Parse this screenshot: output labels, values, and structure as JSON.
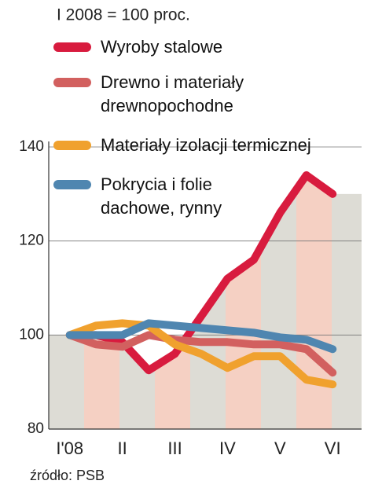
{
  "chart_data": {
    "type": "line",
    "title": "I 2008 = 100 proc.",
    "source": "źródło: PSB",
    "x": [
      1,
      1.5,
      2,
      2.5,
      3,
      3.5,
      4,
      4.5,
      5,
      5.5,
      6
    ],
    "xlim": [
      0.6,
      6.55
    ],
    "xticks": [
      {
        "value": 1,
        "label": "I'08"
      },
      {
        "value": 2,
        "label": "II"
      },
      {
        "value": 3,
        "label": "III"
      },
      {
        "value": 4,
        "label": "IV"
      },
      {
        "value": 5,
        "label": "V"
      },
      {
        "value": 6,
        "label": "VI"
      }
    ],
    "ylim": [
      80,
      140
    ],
    "yticks": [
      80,
      100,
      120,
      140
    ],
    "grid": true,
    "series": [
      {
        "name": "Wyroby stalowe",
        "color": "#d81b3e",
        "values": [
          100,
          100,
          98.5,
          92.5,
          96,
          104,
          112,
          116,
          126,
          134,
          130
        ]
      },
      {
        "name": "Drewno i materiały\ndrewnopochodne",
        "color": "#d2605f",
        "values": [
          100,
          98,
          97.5,
          100,
          99,
          98.5,
          98.5,
          98,
          98,
          97,
          92
        ]
      },
      {
        "name": "Materiały izolacji termicznej",
        "color": "#f0a12e",
        "values": [
          100,
          102,
          102.5,
          102,
          98,
          96,
          93,
          95.5,
          95.5,
          90.5,
          89.5
        ]
      },
      {
        "name": "Pokrycia i folie\ndachowe, rynny",
        "color": "#4f86b0",
        "values": [
          100,
          100,
          100,
          102.5,
          102,
          101.5,
          101,
          100.5,
          99.5,
          99,
          97
        ]
      }
    ]
  }
}
